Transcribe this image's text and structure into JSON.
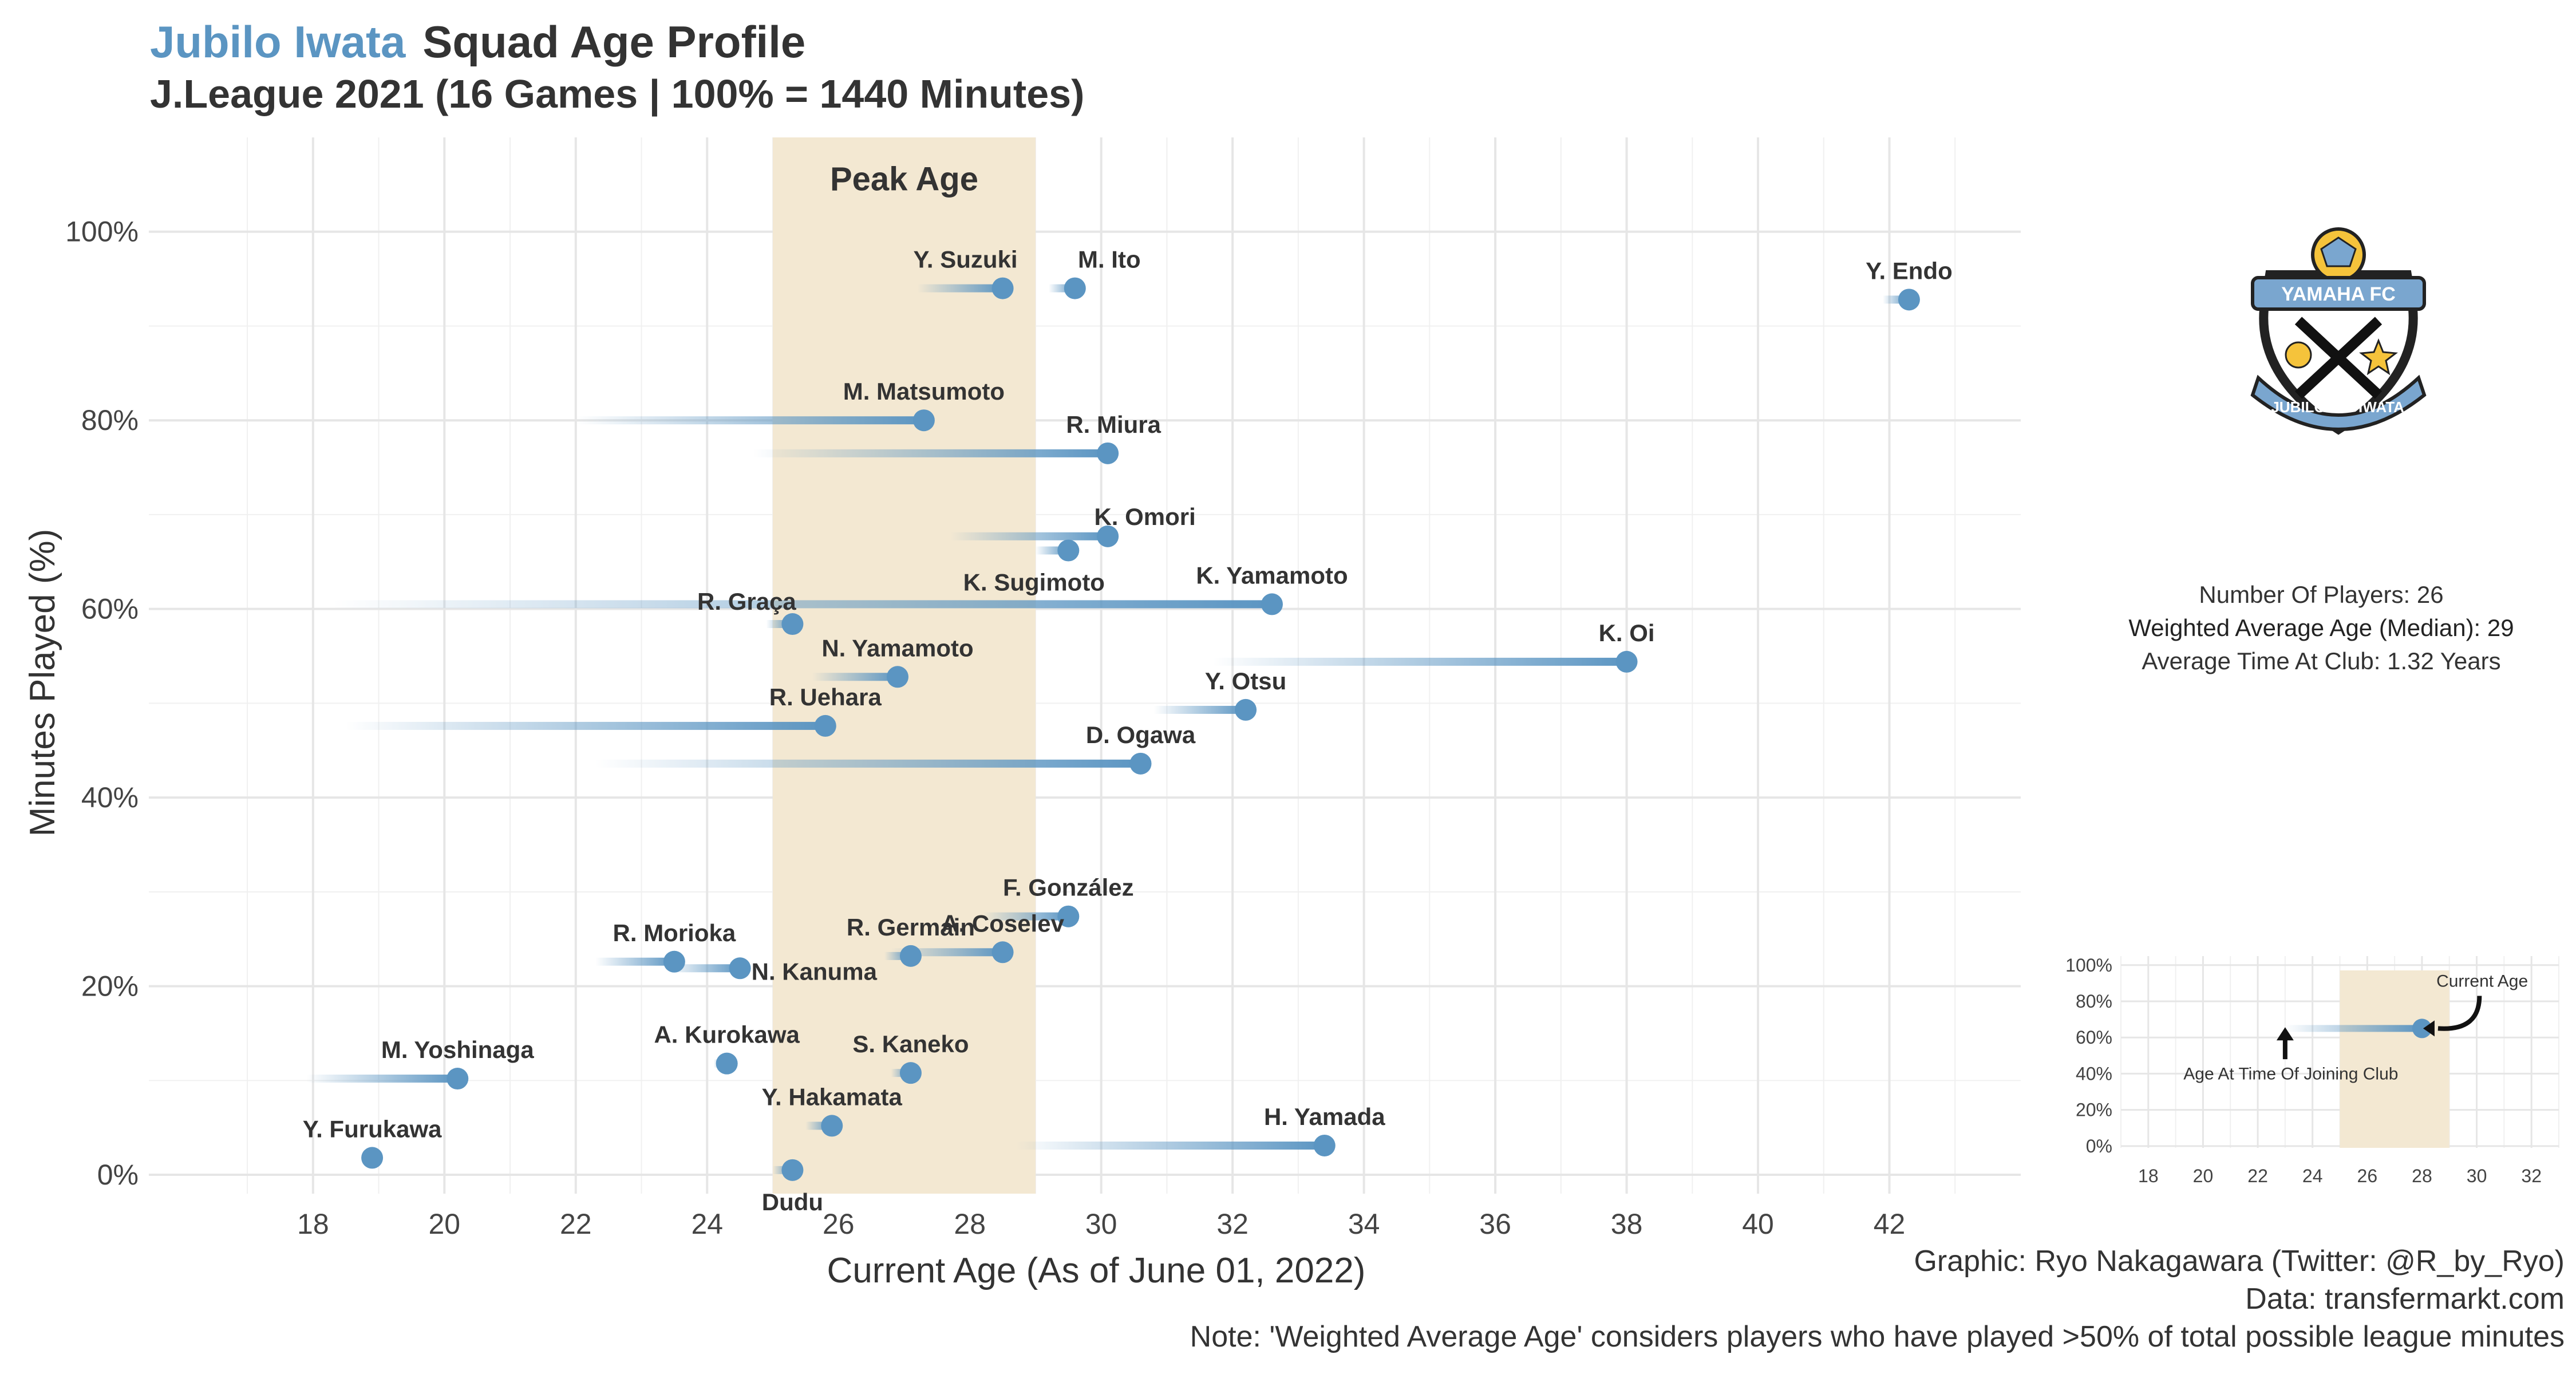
{
  "header": {
    "team": "Jubilo Iwata",
    "title": "Squad Age Profile",
    "subtitle": "J.League 2021 (16 Games | 100% = 1440 Minutes)"
  },
  "colors": {
    "accent": "#5b95c2",
    "peak_band": "#f3e8d2",
    "text": "#333333",
    "grid": "#e6e6e6"
  },
  "stats": {
    "num_players": "Number Of Players: 26",
    "weighted_age": "Weighted Average Age (Median): 29",
    "avg_time": "Average Time At Club: 1.32 Years"
  },
  "logo": {
    "icon": "club-crest-icon",
    "text_top": "YAMAHA FC",
    "text_bottom_left": "JUBILO",
    "text_bottom_right": "IWATA"
  },
  "caption": {
    "line1": "Graphic: Ryo Nakagawara (Twitter: @R_by_Ryo)",
    "line2": "Data: transfermarkt.com",
    "line3": "Note: 'Weighted Average Age' considers players who have played >50% of total possible league minutes"
  },
  "chart_data": [
    {
      "type": "scatter",
      "xlabel": "Current Age (As of June 01, 2022)",
      "ylabel": "Minutes Played (%)",
      "xlim": [
        15.5,
        44
      ],
      "ylim": [
        0,
        1.1
      ],
      "x_ticks": [
        18,
        20,
        22,
        24,
        26,
        28,
        30,
        32,
        34,
        36,
        38,
        40,
        42
      ],
      "y_ticks": [
        0,
        0.2,
        0.4,
        0.6,
        0.8,
        1.0
      ],
      "y_tick_labels": [
        "0%",
        "20%",
        "40%",
        "60%",
        "80%",
        "100%"
      ],
      "grid": true,
      "peak_band": {
        "label": "Peak Age",
        "from": 25,
        "to": 29
      },
      "segments_meaning": "line from age at time of joining club to current age",
      "players": [
        {
          "name": "Y. Endo",
          "age": 42.3,
          "joined": 41.9,
          "minutes": 0.928
        },
        {
          "name": "M. Ito",
          "age": 29.6,
          "joined": 29.2,
          "minutes": 0.94
        },
        {
          "name": "Y. Suzuki",
          "age": 28.5,
          "joined": 27.2,
          "minutes": 0.94
        },
        {
          "name": "M. Matsumoto",
          "age": 27.3,
          "joined": 22.0,
          "minutes": 0.8
        },
        {
          "name": "R. Miura",
          "age": 30.1,
          "joined": 24.7,
          "minutes": 0.765
        },
        {
          "name": "K. Omori",
          "age": 30.1,
          "joined": 27.7,
          "minutes": 0.677
        },
        {
          "name": "K. Sugimoto",
          "age": 29.5,
          "joined": 29.0,
          "minutes": 0.662
        },
        {
          "name": "K. Yamamoto",
          "age": 32.6,
          "joined": 18.3,
          "minutes": 0.605
        },
        {
          "name": "R. Graça",
          "age": 25.3,
          "joined": 24.9,
          "minutes": 0.584
        },
        {
          "name": "K. Oi",
          "age": 38.0,
          "joined": 31.7,
          "minutes": 0.544
        },
        {
          "name": "N. Yamamoto",
          "age": 26.9,
          "joined": 25.6,
          "minutes": 0.528
        },
        {
          "name": "Y. Otsu",
          "age": 32.2,
          "joined": 30.8,
          "minutes": 0.493
        },
        {
          "name": "R. Uehara",
          "age": 25.8,
          "joined": 18.5,
          "minutes": 0.476
        },
        {
          "name": "D. Ogawa",
          "age": 30.6,
          "joined": 22.3,
          "minutes": 0.436
        },
        {
          "name": "F. González",
          "age": 29.5,
          "joined": 28.2,
          "minutes": 0.274
        },
        {
          "name": "A. Coselev",
          "age": 28.5,
          "joined": 26.8,
          "minutes": 0.236
        },
        {
          "name": "R. Germain",
          "age": 27.1,
          "joined": 26.7,
          "minutes": 0.232
        },
        {
          "name": "R. Morioka",
          "age": 23.5,
          "joined": 22.3,
          "minutes": 0.226
        },
        {
          "name": "N. Kanuma",
          "age": 24.5,
          "joined": 23.4,
          "minutes": 0.219
        },
        {
          "name": "M. Yoshinaga",
          "age": 20.2,
          "joined": 17.9,
          "minutes": 0.102
        },
        {
          "name": "A. Kurokawa",
          "age": 24.3,
          "joined": 24.1,
          "minutes": 0.118
        },
        {
          "name": "S. Kaneko",
          "age": 27.1,
          "joined": 26.8,
          "minutes": 0.108
        },
        {
          "name": "Y. Hakamata",
          "age": 25.9,
          "joined": 25.5,
          "minutes": 0.052
        },
        {
          "name": "H. Yamada",
          "age": 33.4,
          "joined": 28.7,
          "minutes": 0.031
        },
        {
          "name": "Y. Furukawa",
          "age": 18.9,
          "joined": 18.8,
          "minutes": 0.018
        },
        {
          "name": "Dudu",
          "age": 25.3,
          "joined": 25.0,
          "minutes": 0.005
        }
      ]
    },
    {
      "type": "scatter",
      "role": "legend-example",
      "xlim": [
        17,
        33
      ],
      "ylim": [
        0,
        1.05
      ],
      "x_ticks": [
        18,
        20,
        22,
        24,
        26,
        28,
        30,
        32
      ],
      "y_ticks": [
        0,
        0.2,
        0.4,
        0.6,
        0.8,
        1.0
      ],
      "y_tick_labels": [
        "0%",
        "20%",
        "40%",
        "60%",
        "80%",
        "100%"
      ],
      "peak_band": {
        "from": 25,
        "to": 29
      },
      "example_point": {
        "joined": 23,
        "age": 28,
        "minutes": 0.65
      },
      "annotations": {
        "current_age": "Current Age",
        "joining_age": "Age At Time Of Joining Club"
      }
    }
  ]
}
